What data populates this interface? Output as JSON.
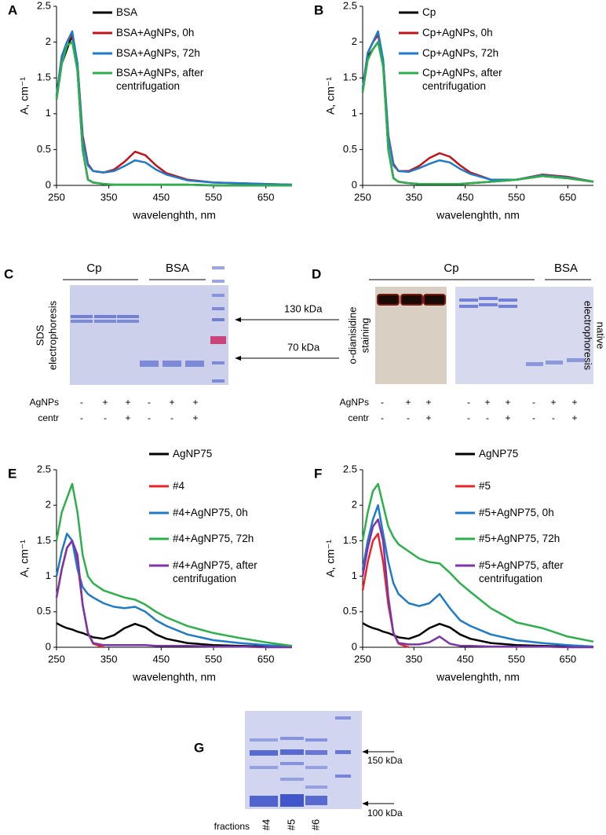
{
  "chart_data": [
    {
      "type": "line",
      "label": "A",
      "xlabel": "wavelenghth, nm",
      "ylabel": "A, cm⁻¹",
      "x": [
        250,
        260,
        270,
        280,
        290,
        300,
        310,
        320,
        340,
        360,
        380,
        400,
        420,
        440,
        460,
        500,
        550,
        600,
        650,
        700
      ],
      "xlim": [
        250,
        700
      ],
      "ylim": [
        0,
        2.5
      ],
      "xticks": [
        250,
        350,
        450,
        550,
        650
      ],
      "yticks": [
        0,
        0.5,
        1,
        1.5,
        2,
        2.5
      ],
      "series": [
        {
          "name": "BSA",
          "color": "#000000",
          "values": [
            1.2,
            1.7,
            1.9,
            2.1,
            1.6,
            0.5,
            0.08,
            0.04,
            0.02,
            0.01,
            0.01,
            0.01,
            0.01,
            0.01,
            0.01,
            0.01,
            0,
            0,
            0,
            0
          ]
        },
        {
          "name": "BSA+AgNPs, 0h",
          "color": "#c0141b",
          "values": [
            1.25,
            1.8,
            2.0,
            2.1,
            1.7,
            0.7,
            0.3,
            0.2,
            0.18,
            0.22,
            0.33,
            0.47,
            0.42,
            0.28,
            0.17,
            0.08,
            0.04,
            0.03,
            0.02,
            0.01
          ]
        },
        {
          "name": "BSA+AgNPs, 72h",
          "color": "#1f7ac8",
          "values": [
            1.25,
            1.8,
            2.0,
            2.15,
            1.7,
            0.65,
            0.28,
            0.2,
            0.18,
            0.2,
            0.27,
            0.35,
            0.32,
            0.22,
            0.15,
            0.07,
            0.04,
            0.03,
            0.02,
            0.01
          ]
        },
        {
          "name": "BSA+AgNPs, after centrifugation",
          "color": "#2db04b",
          "values": [
            1.2,
            1.7,
            1.95,
            2.0,
            1.6,
            0.5,
            0.08,
            0.04,
            0.02,
            0.01,
            0.01,
            0.01,
            0.01,
            0.01,
            0.01,
            0.01,
            0,
            0,
            0,
            0
          ]
        }
      ]
    },
    {
      "type": "line",
      "label": "B",
      "xlabel": "wavelenghth, nm",
      "ylabel": "A, cm⁻¹",
      "x": [
        250,
        260,
        270,
        280,
        290,
        300,
        310,
        320,
        340,
        360,
        380,
        400,
        420,
        440,
        460,
        500,
        550,
        600,
        650,
        700
      ],
      "xlim": [
        250,
        700
      ],
      "ylim": [
        0,
        2.5
      ],
      "xticks": [
        250,
        350,
        450,
        550,
        650
      ],
      "yticks": [
        0,
        0.5,
        1,
        1.5,
        2,
        2.5
      ],
      "series": [
        {
          "name": "Cp",
          "color": "#000000",
          "values": [
            1.3,
            1.8,
            1.9,
            2.0,
            1.7,
            0.5,
            0.1,
            0.05,
            0.03,
            0.02,
            0.02,
            0.02,
            0.02,
            0.02,
            0.03,
            0.05,
            0.08,
            0.13,
            0.1,
            0.05
          ]
        },
        {
          "name": "Cp+AgNPs, 0h",
          "color": "#c0141b",
          "values": [
            1.35,
            1.85,
            2.0,
            2.1,
            1.75,
            0.7,
            0.3,
            0.2,
            0.2,
            0.27,
            0.38,
            0.45,
            0.4,
            0.28,
            0.18,
            0.08,
            0.08,
            0.15,
            0.12,
            0.05
          ]
        },
        {
          "name": "Cp+AgNPs, 72h",
          "color": "#1f7ac8",
          "values": [
            1.35,
            1.85,
            2.0,
            2.15,
            1.75,
            0.68,
            0.28,
            0.2,
            0.19,
            0.24,
            0.3,
            0.35,
            0.32,
            0.23,
            0.16,
            0.08,
            0.08,
            0.14,
            0.11,
            0.05
          ]
        },
        {
          "name": "Cp+AgNPs, after centrifugation",
          "color": "#2db04b",
          "values": [
            1.3,
            1.75,
            1.9,
            2.0,
            1.65,
            0.5,
            0.1,
            0.05,
            0.03,
            0.02,
            0.02,
            0.02,
            0.02,
            0.02,
            0.03,
            0.05,
            0.08,
            0.13,
            0.1,
            0.05
          ]
        }
      ]
    },
    {
      "type": "line",
      "label": "E",
      "xlabel": "wavelenghth, nm",
      "ylabel": "A, cm⁻¹",
      "x": [
        250,
        260,
        270,
        280,
        290,
        300,
        310,
        320,
        340,
        360,
        380,
        400,
        420,
        440,
        460,
        500,
        550,
        600,
        650,
        700
      ],
      "xlim": [
        250,
        700
      ],
      "ylim": [
        0,
        2.5
      ],
      "xticks": [
        250,
        350,
        450,
        550,
        650
      ],
      "yticks": [
        0,
        0.5,
        1,
        1.5,
        2,
        2.5
      ],
      "series": [
        {
          "name": "AgNP75",
          "color": "#000000",
          "values": [
            0.34,
            0.3,
            0.27,
            0.25,
            0.22,
            0.2,
            0.17,
            0.14,
            0.12,
            0.17,
            0.27,
            0.33,
            0.28,
            0.18,
            0.12,
            0.06,
            0.03,
            0.02,
            0.01,
            0.01
          ]
        },
        {
          "name": "#4",
          "color": "#e8262a",
          "values": [
            0.7,
            1.1,
            1.4,
            1.5,
            1.2,
            0.6,
            0.2,
            0.05,
            0,
            null,
            null,
            null,
            null,
            null,
            null,
            null,
            null,
            null,
            null,
            null
          ]
        },
        {
          "name": "#4+AgNP75, 0h",
          "color": "#1f7ac8",
          "values": [
            1.0,
            1.35,
            1.6,
            1.5,
            1.1,
            0.85,
            0.75,
            0.7,
            0.62,
            0.57,
            0.55,
            0.57,
            0.5,
            0.38,
            0.3,
            0.18,
            0.1,
            0.06,
            0.03,
            0.01
          ]
        },
        {
          "name": "#4+AgNP75, 72h",
          "color": "#2db04b",
          "values": [
            1.5,
            1.9,
            2.1,
            2.3,
            1.9,
            1.3,
            1.0,
            0.9,
            0.8,
            0.75,
            0.7,
            0.67,
            0.6,
            0.5,
            0.42,
            0.3,
            0.2,
            0.13,
            0.07,
            0.02
          ]
        },
        {
          "name": "#4+AgNP75, after centrifugation",
          "color": "#7a35a8",
          "values": [
            0.7,
            1.1,
            1.4,
            1.5,
            1.3,
            0.6,
            0.2,
            0.06,
            0.03,
            0.03,
            0.03,
            0.03,
            0.03,
            0.02,
            0.02,
            0.02,
            0.01,
            0.01,
            0,
            0
          ]
        }
      ]
    },
    {
      "type": "line",
      "label": "F",
      "xlabel": "wavelenghth, nm",
      "ylabel": "A, cm⁻¹",
      "x": [
        250,
        260,
        270,
        280,
        290,
        300,
        310,
        320,
        340,
        360,
        380,
        400,
        420,
        440,
        460,
        500,
        550,
        600,
        650,
        700
      ],
      "xlim": [
        250,
        700
      ],
      "ylim": [
        0,
        2.5
      ],
      "xticks": [
        250,
        350,
        450,
        550,
        650
      ],
      "yticks": [
        0,
        0.5,
        1,
        1.5,
        2,
        2.5
      ],
      "series": [
        {
          "name": "AgNP75",
          "color": "#000000",
          "values": [
            0.34,
            0.3,
            0.27,
            0.25,
            0.22,
            0.2,
            0.17,
            0.14,
            0.12,
            0.17,
            0.27,
            0.33,
            0.28,
            0.18,
            0.12,
            0.06,
            0.03,
            0.02,
            0.01,
            0.01
          ]
        },
        {
          "name": "#5",
          "color": "#e8262a",
          "values": [
            0.8,
            1.2,
            1.5,
            1.6,
            1.2,
            0.6,
            0.2,
            0.05,
            0,
            null,
            null,
            null,
            null,
            null,
            null,
            null,
            null,
            null,
            null,
            null
          ]
        },
        {
          "name": "#5+AgNP75, 0h",
          "color": "#1f7ac8",
          "values": [
            1.1,
            1.5,
            1.8,
            2.0,
            1.6,
            1.2,
            0.9,
            0.75,
            0.62,
            0.58,
            0.62,
            0.75,
            0.55,
            0.38,
            0.3,
            0.18,
            0.1,
            0.06,
            0.03,
            0.01
          ]
        },
        {
          "name": "#5+AgNP75, 72h",
          "color": "#2db04b",
          "values": [
            1.5,
            1.9,
            2.2,
            2.3,
            2.0,
            1.7,
            1.55,
            1.45,
            1.35,
            1.25,
            1.2,
            1.18,
            1.05,
            0.9,
            0.78,
            0.55,
            0.35,
            0.27,
            0.15,
            0.08
          ]
        },
        {
          "name": "#5+AgNP75, after centrifugation",
          "color": "#7a35a8",
          "values": [
            1.0,
            1.4,
            1.7,
            1.8,
            1.5,
            0.7,
            0.2,
            0.06,
            0.04,
            0.04,
            0.07,
            0.15,
            0.05,
            0.02,
            0.02,
            0.01,
            0.01,
            0.01,
            0,
            0
          ]
        }
      ]
    }
  ],
  "panels": {
    "C": {
      "label": "C",
      "groups": [
        "Cp",
        "BSA"
      ],
      "side_label": [
        "SDS",
        "electrophoresis"
      ],
      "markers": [
        "130 kDa",
        "70 kDa"
      ],
      "rows": [
        {
          "name": "AgNPs",
          "signs": [
            "-",
            "+",
            "+",
            "-",
            "+",
            "+"
          ]
        },
        {
          "name": "centr",
          "signs": [
            "-",
            "-",
            "+",
            "-",
            "-",
            "+"
          ]
        }
      ]
    },
    "D": {
      "label": "D",
      "groups": [
        "Cp",
        "BSA"
      ],
      "side_label": [
        "o-dianisidine",
        "staining"
      ],
      "side_label_right": [
        "native",
        "electrophoresis"
      ],
      "rows": [
        {
          "name": "AgNPs",
          "signs": [
            "-",
            "+",
            "+",
            "-",
            "+",
            "+",
            "-",
            "+",
            "+"
          ]
        },
        {
          "name": "centr",
          "signs": [
            "-",
            "-",
            "+",
            "-",
            "-",
            "+",
            "-",
            "-",
            "+"
          ]
        }
      ]
    },
    "G": {
      "label": "G",
      "markers": [
        "150 kDa",
        "100 kDa"
      ],
      "axis_label": "fractions",
      "lanes": [
        "#4",
        "#5",
        "#6"
      ]
    }
  }
}
